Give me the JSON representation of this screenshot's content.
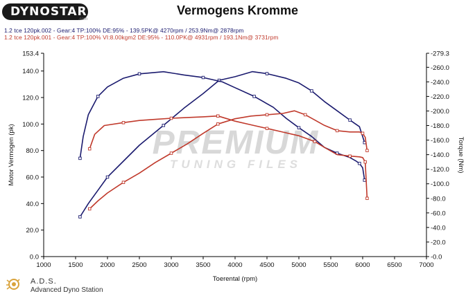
{
  "logo": {
    "text": "DYNOSTAR",
    "sub": ".com"
  },
  "title": "Vermogens Kromme",
  "runs": [
    {
      "label": "1.2 tce 120pk.002 - Gear:4 TP:100% DE:95%   - 139.5PK@ 4270rpm / 253.9Nm@ 2878rpm",
      "color": "#1a1a6e"
    },
    {
      "label": "1.2 tce 120pk.001 - Gear:4 TP:100% VI:8.00kgm2 DE:95%   - 110.0PK@ 4931rpm / 193.1Nm@ 3731rpm",
      "color": "#c0392b"
    }
  ],
  "watermark": {
    "main": "PREMIUM",
    "sub": "TUNING FILES"
  },
  "footer": {
    "ads": "A.D.S.",
    "sub": "Advanced Dyno Station"
  },
  "chart_data": {
    "type": "line",
    "xlabel": "Toerental (rpm)",
    "ylabel": "Motor Vermogen (pk)",
    "y2label": "Torque (Nm)",
    "xlim": [
      1000,
      7000
    ],
    "xticks": [
      1000,
      1500,
      2000,
      2500,
      3000,
      3500,
      4000,
      4500,
      5000,
      5500,
      6000,
      6500,
      7000
    ],
    "ylim": [
      0,
      153.4
    ],
    "yticks": [
      0.0,
      20.0,
      40.0,
      60.0,
      80.0,
      100.0,
      120.0,
      140.0,
      153.4
    ],
    "y2lim": [
      0,
      279.3
    ],
    "y2ticks": [
      0.0,
      20.0,
      40.0,
      60.0,
      80.0,
      100.0,
      120.0,
      140.0,
      160.0,
      180.0,
      200.0,
      220.0,
      240.0,
      260.0,
      279.3
    ],
    "grid": false,
    "series": [
      {
        "name": "1.2 tce 120pk.002",
        "quantity": "power",
        "axis": "left",
        "color": "#1a1a6e",
        "x": [
          1570,
          1700,
          1850,
          2000,
          2250,
          2500,
          2878,
          3200,
          3500,
          3750,
          4000,
          4270,
          4500,
          4800,
          5000,
          5200,
          5400,
          5600,
          5800,
          5950,
          6030
        ],
        "y": [
          30,
          40,
          50,
          60,
          72,
          84,
          99,
          112,
          123,
          133,
          135.7,
          139.5,
          138,
          134.5,
          131,
          125,
          117,
          110,
          103,
          98,
          86
        ]
      },
      {
        "name": "1.2 tce 120pk.002",
        "quantity": "torque",
        "axis": "right",
        "color": "#1a1a6e",
        "x": [
          1570,
          1620,
          1700,
          1850,
          2000,
          2250,
          2500,
          2878,
          3200,
          3500,
          3800,
          4000,
          4300,
          4600,
          4800,
          5000,
          5200,
          5400,
          5600,
          5800,
          5900,
          5950,
          6000,
          6030
        ],
        "y": [
          135,
          165,
          195,
          220,
          233,
          245,
          251,
          253.9,
          249.5,
          246,
          240,
          232,
          220,
          205,
          190,
          177,
          165,
          150,
          142,
          136,
          131,
          128,
          122,
          105
        ]
      },
      {
        "name": "1.2 tce 120pk.001",
        "quantity": "power",
        "axis": "left",
        "color": "#c0392b",
        "x": [
          1720,
          1850,
          2000,
          2250,
          2500,
          2750,
          3000,
          3250,
          3500,
          3731,
          4000,
          4250,
          4500,
          4750,
          4931,
          5100,
          5250,
          5400,
          5600,
          5800,
          5950,
          6000,
          6040,
          6070
        ],
        "y": [
          36,
          42,
          48,
          56,
          63,
          71,
          78,
          85,
          93,
          100,
          104,
          106,
          107,
          108,
          110,
          107,
          103,
          99,
          95,
          94,
          94,
          93,
          90,
          80
        ]
      },
      {
        "name": "1.2 tce 120pk.001",
        "quantity": "torque",
        "axis": "right",
        "color": "#c0392b",
        "x": [
          1720,
          1800,
          1950,
          2250,
          2500,
          2750,
          3000,
          3250,
          3500,
          3731,
          4000,
          4250,
          4500,
          4750,
          5000,
          5250,
          5400,
          5600,
          5800,
          5950,
          6000,
          6040,
          6070
        ],
        "y": [
          148,
          168,
          180,
          184,
          187,
          188.5,
          190,
          191,
          192,
          193.1,
          186,
          181,
          176,
          171,
          166,
          158,
          150,
          140,
          138,
          137,
          136,
          130,
          80
        ]
      }
    ]
  }
}
